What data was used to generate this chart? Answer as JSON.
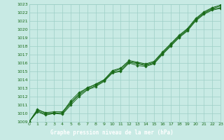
{
  "title": "Graphe pression niveau de la mer (hPa)",
  "xlim": [
    0,
    23
  ],
  "ylim": [
    1009,
    1023
  ],
  "xticks": [
    0,
    1,
    2,
    3,
    4,
    5,
    6,
    7,
    8,
    9,
    10,
    11,
    12,
    13,
    14,
    15,
    16,
    17,
    18,
    19,
    20,
    21,
    22,
    23
  ],
  "yticks": [
    1009,
    1010,
    1011,
    1012,
    1013,
    1014,
    1015,
    1016,
    1017,
    1018,
    1019,
    1020,
    1021,
    1022,
    1023
  ],
  "bg_color": "#c8eae4",
  "grid_color": "#9ecfc7",
  "line_color": "#1a6b1a",
  "marker_color": "#1a6b1a",
  "title_bg": "#1a6b1a",
  "title_fg": "#ffffff",
  "series": [
    [
      1009.0,
      1010.5,
      1010.0,
      1010.0,
      1010.1,
      1011.5,
      1012.5,
      1013.0,
      1013.5,
      1014.0,
      1015.0,
      1015.3,
      1016.2,
      1016.0,
      1015.8,
      1016.1,
      1017.2,
      1018.2,
      1019.2,
      1020.0,
      1021.2,
      1022.0,
      1022.5,
      1022.8
    ],
    [
      1009.0,
      1010.2,
      1009.8,
      1010.0,
      1009.9,
      1011.0,
      1012.0,
      1012.8,
      1013.2,
      1013.8,
      1014.8,
      1015.0,
      1016.0,
      1015.7,
      1015.6,
      1015.9,
      1017.0,
      1018.0,
      1019.0,
      1019.8,
      1021.0,
      1021.8,
      1022.3,
      1022.5
    ],
    [
      1009.0,
      1010.3,
      1009.9,
      1010.1,
      1010.0,
      1011.2,
      1012.2,
      1012.9,
      1013.3,
      1013.9,
      1014.9,
      1015.1,
      1016.1,
      1015.9,
      1015.7,
      1016.0,
      1017.1,
      1018.1,
      1019.1,
      1019.9,
      1021.1,
      1021.9,
      1022.4,
      1022.6
    ],
    [
      1009.0,
      1010.4,
      1010.1,
      1010.2,
      1010.2,
      1011.3,
      1012.3,
      1013.1,
      1013.4,
      1014.0,
      1015.1,
      1015.4,
      1016.3,
      1016.1,
      1015.9,
      1016.2,
      1017.3,
      1018.3,
      1019.3,
      1020.1,
      1021.3,
      1022.1,
      1022.6,
      1022.9
    ]
  ]
}
